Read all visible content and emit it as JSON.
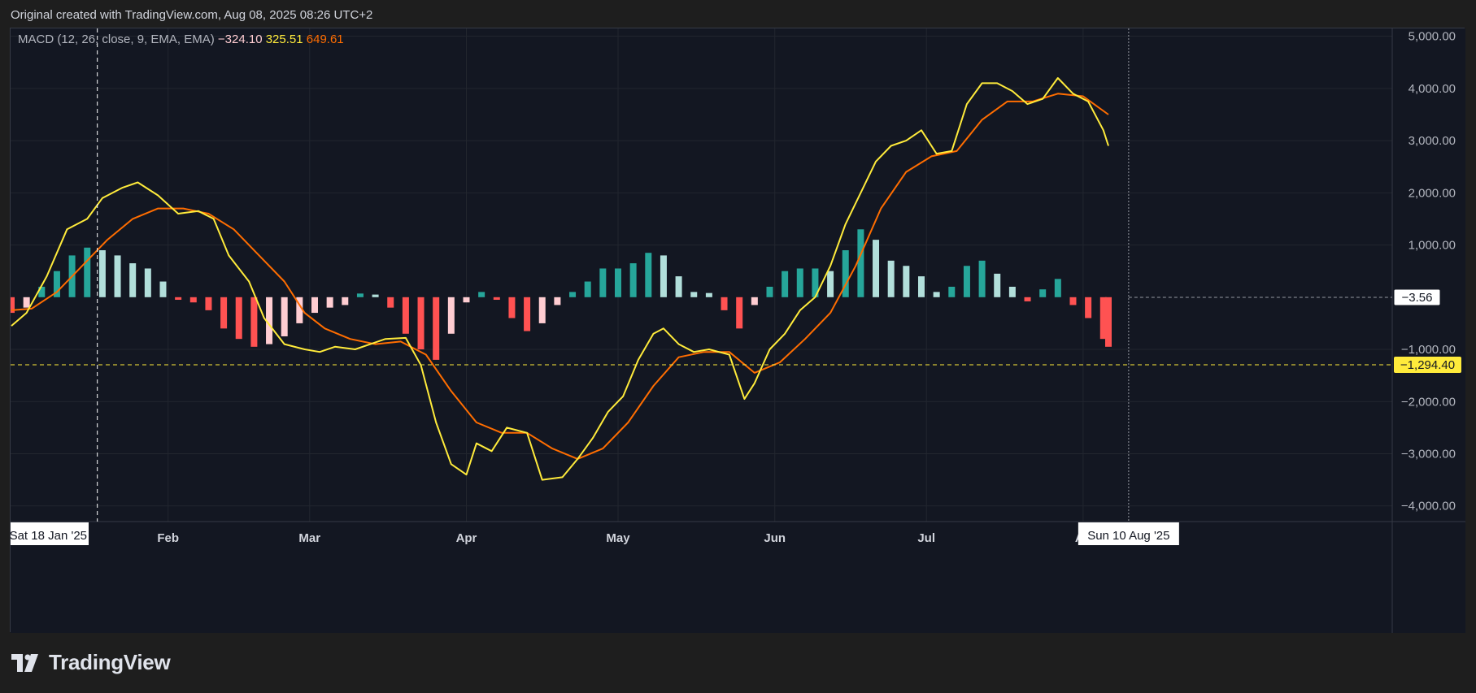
{
  "header": {
    "caption": "Original created with TradingView.com, Aug 08, 2025 08:26 UTC+2"
  },
  "brand": {
    "name": "TradingView",
    "logo_icon": "tradingview-logo-icon"
  },
  "colors": {
    "background": "#131722",
    "page": "#1e1e1e",
    "macd_line": "#ffeb3b",
    "signal_line": "#ff6d00",
    "hist_pos_strong": "#26a69a",
    "hist_pos_weak": "#b2dfdb",
    "hist_neg_strong": "#ff5252",
    "hist_neg_weak": "#ffcdd2",
    "grid": "#22262f"
  },
  "chart_data": {
    "type": "line",
    "title": "",
    "indicator": {
      "label": "MACD (12, 26, close, 9, EMA, EMA)",
      "histogram_value": "−324.10",
      "macd_value": "325.51",
      "signal_value": "649.61"
    },
    "x_start": "2025-01-01",
    "x_end": "2025-08-06",
    "x_ticks": [
      "Feb",
      "Mar",
      "Apr",
      "May",
      "Jun",
      "Jul",
      "Au"
    ],
    "x_tick_dates": [
      "2025-02-01",
      "2025-03-01",
      "2025-04-01",
      "2025-05-01",
      "2025-06-01",
      "2025-07-01",
      "2025-08-01"
    ],
    "ylim": [
      -4300,
      5150
    ],
    "y_ticks": [
      5000,
      4000,
      3000,
      2000,
      1000,
      -1000,
      -2000,
      -3000,
      -4000
    ],
    "y_tick_labels": [
      "5,000.00",
      "4,000.00",
      "3,000.00",
      "2,000.00",
      "1,000.00",
      "−1,000.00",
      "−2,000.00",
      "−3,000.00",
      "−4,000.00"
    ],
    "price_labels": [
      {
        "value": -3.56,
        "label": "−3.56",
        "style": "white"
      },
      {
        "value": -1294.4,
        "label": "−1,294.40",
        "style": "yellow"
      }
    ],
    "crosshair": {
      "v_date": "2025-01-18",
      "v_label": "Sat 18 Jan '25",
      "h_value": -1294.4,
      "last_date": "2025-08-10",
      "last_label": "Sun 10 Aug '25"
    },
    "series": [
      {
        "name": "MACD",
        "color": "#ffeb3b",
        "points": [
          [
            "2025-01-01",
            -550
          ],
          [
            "2025-01-04",
            -300
          ],
          [
            "2025-01-08",
            400
          ],
          [
            "2025-01-12",
            1300
          ],
          [
            "2025-01-16",
            1500
          ],
          [
            "2025-01-19",
            1900
          ],
          [
            "2025-01-23",
            2100
          ],
          [
            "2025-01-26",
            2200
          ],
          [
            "2025-01-30",
            1950
          ],
          [
            "2025-02-03",
            1600
          ],
          [
            "2025-02-07",
            1650
          ],
          [
            "2025-02-10",
            1500
          ],
          [
            "2025-02-13",
            800
          ],
          [
            "2025-02-17",
            300
          ],
          [
            "2025-02-20",
            -400
          ],
          [
            "2025-02-24",
            -900
          ],
          [
            "2025-02-28",
            -1000
          ],
          [
            "2025-03-03",
            -1050
          ],
          [
            "2025-03-06",
            -950
          ],
          [
            "2025-03-10",
            -1000
          ],
          [
            "2025-03-13",
            -900
          ],
          [
            "2025-03-16",
            -800
          ],
          [
            "2025-03-20",
            -780
          ],
          [
            "2025-03-23",
            -1300
          ],
          [
            "2025-03-26",
            -2400
          ],
          [
            "2025-03-29",
            -3200
          ],
          [
            "2025-04-01",
            -3400
          ],
          [
            "2025-04-03",
            -2800
          ],
          [
            "2025-04-06",
            -2950
          ],
          [
            "2025-04-09",
            -2500
          ],
          [
            "2025-04-13",
            -2600
          ],
          [
            "2025-04-16",
            -3500
          ],
          [
            "2025-04-20",
            -3450
          ],
          [
            "2025-04-23",
            -3100
          ],
          [
            "2025-04-26",
            -2700
          ],
          [
            "2025-04-29",
            -2200
          ],
          [
            "2025-05-02",
            -1900
          ],
          [
            "2025-05-05",
            -1200
          ],
          [
            "2025-05-08",
            -700
          ],
          [
            "2025-05-10",
            -600
          ],
          [
            "2025-05-13",
            -900
          ],
          [
            "2025-05-16",
            -1050
          ],
          [
            "2025-05-19",
            -1000
          ],
          [
            "2025-05-23",
            -1100
          ],
          [
            "2025-05-26",
            -1950
          ],
          [
            "2025-05-28",
            -1650
          ],
          [
            "2025-05-31",
            -1000
          ],
          [
            "2025-06-03",
            -700
          ],
          [
            "2025-06-06",
            -250
          ],
          [
            "2025-06-09",
            0
          ],
          [
            "2025-06-12",
            600
          ],
          [
            "2025-06-15",
            1400
          ],
          [
            "2025-06-18",
            2000
          ],
          [
            "2025-06-21",
            2600
          ],
          [
            "2025-06-24",
            2900
          ],
          [
            "2025-06-27",
            3000
          ],
          [
            "2025-06-30",
            3200
          ],
          [
            "2025-07-03",
            2750
          ],
          [
            "2025-07-06",
            2800
          ],
          [
            "2025-07-09",
            3700
          ],
          [
            "2025-07-12",
            4100
          ],
          [
            "2025-07-15",
            4100
          ],
          [
            "2025-07-18",
            3950
          ],
          [
            "2025-07-21",
            3700
          ],
          [
            "2025-07-24",
            3800
          ],
          [
            "2025-07-27",
            4200
          ],
          [
            "2025-07-30",
            3900
          ],
          [
            "2025-08-02",
            3750
          ],
          [
            "2025-08-05",
            3200
          ],
          [
            "2025-08-06",
            2900
          ]
        ]
      },
      {
        "name": "Signal",
        "color": "#ff6d00",
        "points": [
          [
            "2025-01-01",
            -250
          ],
          [
            "2025-01-05",
            -220
          ],
          [
            "2025-01-10",
            100
          ],
          [
            "2025-01-15",
            600
          ],
          [
            "2025-01-20",
            1100
          ],
          [
            "2025-01-25",
            1500
          ],
          [
            "2025-01-30",
            1700
          ],
          [
            "2025-02-04",
            1700
          ],
          [
            "2025-02-09",
            1600
          ],
          [
            "2025-02-14",
            1300
          ],
          [
            "2025-02-19",
            800
          ],
          [
            "2025-02-24",
            300
          ],
          [
            "2025-02-28",
            -300
          ],
          [
            "2025-03-04",
            -600
          ],
          [
            "2025-03-09",
            -800
          ],
          [
            "2025-03-14",
            -900
          ],
          [
            "2025-03-19",
            -850
          ],
          [
            "2025-03-24",
            -1100
          ],
          [
            "2025-03-29",
            -1800
          ],
          [
            "2025-04-03",
            -2400
          ],
          [
            "2025-04-08",
            -2600
          ],
          [
            "2025-04-13",
            -2600
          ],
          [
            "2025-04-18",
            -2900
          ],
          [
            "2025-04-23",
            -3100
          ],
          [
            "2025-04-28",
            -2900
          ],
          [
            "2025-05-03",
            -2400
          ],
          [
            "2025-05-08",
            -1700
          ],
          [
            "2025-05-13",
            -1150
          ],
          [
            "2025-05-18",
            -1050
          ],
          [
            "2025-05-23",
            -1050
          ],
          [
            "2025-05-28",
            -1450
          ],
          [
            "2025-06-02",
            -1250
          ],
          [
            "2025-06-07",
            -800
          ],
          [
            "2025-06-12",
            -300
          ],
          [
            "2025-06-17",
            600
          ],
          [
            "2025-06-22",
            1700
          ],
          [
            "2025-06-27",
            2400
          ],
          [
            "2025-07-02",
            2700
          ],
          [
            "2025-07-07",
            2800
          ],
          [
            "2025-07-12",
            3400
          ],
          [
            "2025-07-17",
            3750
          ],
          [
            "2025-07-22",
            3750
          ],
          [
            "2025-07-27",
            3900
          ],
          [
            "2025-08-01",
            3850
          ],
          [
            "2025-08-06",
            3500
          ]
        ]
      },
      {
        "name": "Histogram",
        "type": "bar",
        "points": [
          [
            "2025-01-01",
            -300
          ],
          [
            "2025-01-04",
            -200
          ],
          [
            "2025-01-07",
            200
          ],
          [
            "2025-01-10",
            500
          ],
          [
            "2025-01-13",
            800
          ],
          [
            "2025-01-16",
            950
          ],
          [
            "2025-01-19",
            900
          ],
          [
            "2025-01-22",
            800
          ],
          [
            "2025-01-25",
            650
          ],
          [
            "2025-01-28",
            550
          ],
          [
            "2025-01-31",
            300
          ],
          [
            "2025-02-03",
            -50
          ],
          [
            "2025-02-06",
            -100
          ],
          [
            "2025-02-09",
            -250
          ],
          [
            "2025-02-12",
            -600
          ],
          [
            "2025-02-15",
            -800
          ],
          [
            "2025-02-18",
            -950
          ],
          [
            "2025-02-21",
            -900
          ],
          [
            "2025-02-24",
            -750
          ],
          [
            "2025-02-27",
            -500
          ],
          [
            "2025-03-02",
            -300
          ],
          [
            "2025-03-05",
            -200
          ],
          [
            "2025-03-08",
            -150
          ],
          [
            "2025-03-11",
            70
          ],
          [
            "2025-03-14",
            50
          ],
          [
            "2025-03-17",
            -200
          ],
          [
            "2025-03-20",
            -700
          ],
          [
            "2025-03-23",
            -1000
          ],
          [
            "2025-03-26",
            -1200
          ],
          [
            "2025-03-29",
            -700
          ],
          [
            "2025-04-01",
            -100
          ],
          [
            "2025-04-04",
            100
          ],
          [
            "2025-04-07",
            -50
          ],
          [
            "2025-04-10",
            -400
          ],
          [
            "2025-04-13",
            -650
          ],
          [
            "2025-04-16",
            -500
          ],
          [
            "2025-04-19",
            -150
          ],
          [
            "2025-04-22",
            100
          ],
          [
            "2025-04-25",
            300
          ],
          [
            "2025-04-28",
            550
          ],
          [
            "2025-05-01",
            550
          ],
          [
            "2025-05-04",
            650
          ],
          [
            "2025-05-07",
            850
          ],
          [
            "2025-05-10",
            800
          ],
          [
            "2025-05-13",
            400
          ],
          [
            "2025-05-16",
            100
          ],
          [
            "2025-05-19",
            80
          ],
          [
            "2025-05-22",
            -250
          ],
          [
            "2025-05-25",
            -600
          ],
          [
            "2025-05-28",
            -150
          ],
          [
            "2025-05-31",
            200
          ],
          [
            "2025-06-03",
            500
          ],
          [
            "2025-06-06",
            550
          ],
          [
            "2025-06-09",
            550
          ],
          [
            "2025-06-12",
            500
          ],
          [
            "2025-06-15",
            900
          ],
          [
            "2025-06-18",
            1300
          ],
          [
            "2025-06-21",
            1100
          ],
          [
            "2025-06-24",
            700
          ],
          [
            "2025-06-27",
            600
          ],
          [
            "2025-06-30",
            400
          ],
          [
            "2025-07-03",
            100
          ],
          [
            "2025-07-06",
            200
          ],
          [
            "2025-07-09",
            600
          ],
          [
            "2025-07-12",
            700
          ],
          [
            "2025-07-15",
            450
          ],
          [
            "2025-07-18",
            200
          ],
          [
            "2025-07-21",
            -80
          ],
          [
            "2025-07-24",
            150
          ],
          [
            "2025-07-27",
            350
          ],
          [
            "2025-07-30",
            -150
          ],
          [
            "2025-08-02",
            -400
          ],
          [
            "2025-08-05",
            -800
          ],
          [
            "2025-08-06",
            -950
          ]
        ]
      }
    ],
    "grid": true,
    "legend": "top-left"
  }
}
